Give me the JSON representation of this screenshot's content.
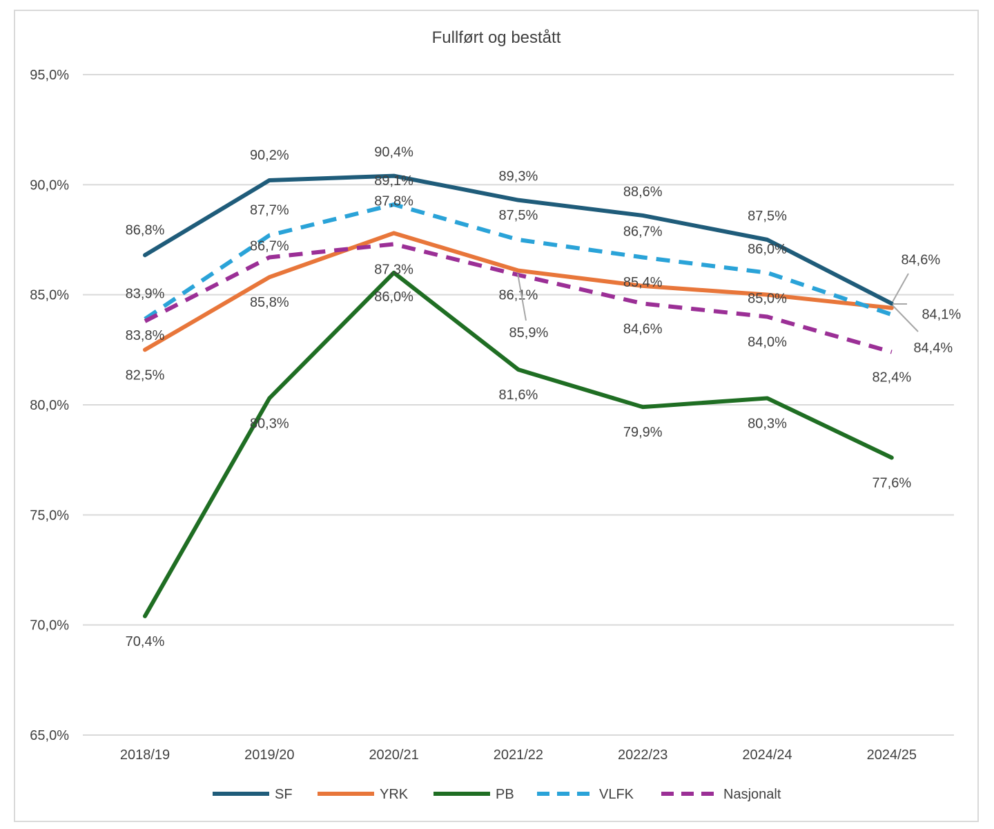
{
  "chart_data": {
    "type": "line",
    "title": "Fullført og bestått",
    "xlabel": "",
    "ylabel": "",
    "categories": [
      "2018/19",
      "2019/20",
      "2020/21",
      "2021/22",
      "2022/23",
      "2024/24",
      "2024/25"
    ],
    "ylim": [
      65.0,
      95.0
    ],
    "yticks": [
      "65,0%",
      "70,0%",
      "75,0%",
      "80,0%",
      "85,0%",
      "90,0%",
      "95,0%"
    ],
    "grid": true,
    "legend_position": "bottom",
    "series": [
      {
        "name": "SF",
        "color": "#1f5c7a",
        "dash": "solid",
        "values": [
          86.8,
          90.2,
          90.4,
          89.3,
          88.6,
          87.5,
          84.6
        ],
        "labels": [
          "86,8%",
          "90,2%",
          "90,4%",
          "89,3%",
          "88,6%",
          "87,5%",
          "84,6%"
        ]
      },
      {
        "name": "YRK",
        "color": "#e8763a",
        "dash": "solid",
        "values": [
          82.5,
          85.8,
          87.8,
          86.1,
          85.4,
          85.0,
          84.4
        ],
        "labels": [
          "82,5%",
          "85,8%",
          "87,8%",
          "86,1%",
          "85,4%",
          "85,0%",
          "84,4%"
        ]
      },
      {
        "name": "PB",
        "color": "#1f6e23",
        "dash": "solid",
        "values": [
          70.4,
          80.3,
          86.0,
          81.6,
          79.9,
          80.3,
          77.6
        ],
        "labels": [
          "70,4%",
          "80,3%",
          "86,0%",
          "81,6%",
          "79,9%",
          "80,3%",
          "77,6%"
        ]
      },
      {
        "name": "VLFK",
        "color": "#2aa3d8",
        "dash": "dashed",
        "values": [
          83.9,
          87.7,
          89.1,
          87.5,
          86.7,
          86.0,
          84.1
        ],
        "labels": [
          "83,9%",
          "87,7%",
          "89,1%",
          "87,5%",
          "86,7%",
          "86,0%",
          "84,1%"
        ]
      },
      {
        "name": "Nasjonalt",
        "color": "#9b2f96",
        "dash": "dashed",
        "values": [
          83.8,
          86.7,
          87.3,
          85.9,
          84.6,
          84.0,
          82.4
        ],
        "labels": [
          "83,8%",
          "86,7%",
          "87,3%",
          "85,9%",
          "84,6%",
          "84,0%",
          "82,4%"
        ]
      }
    ]
  }
}
